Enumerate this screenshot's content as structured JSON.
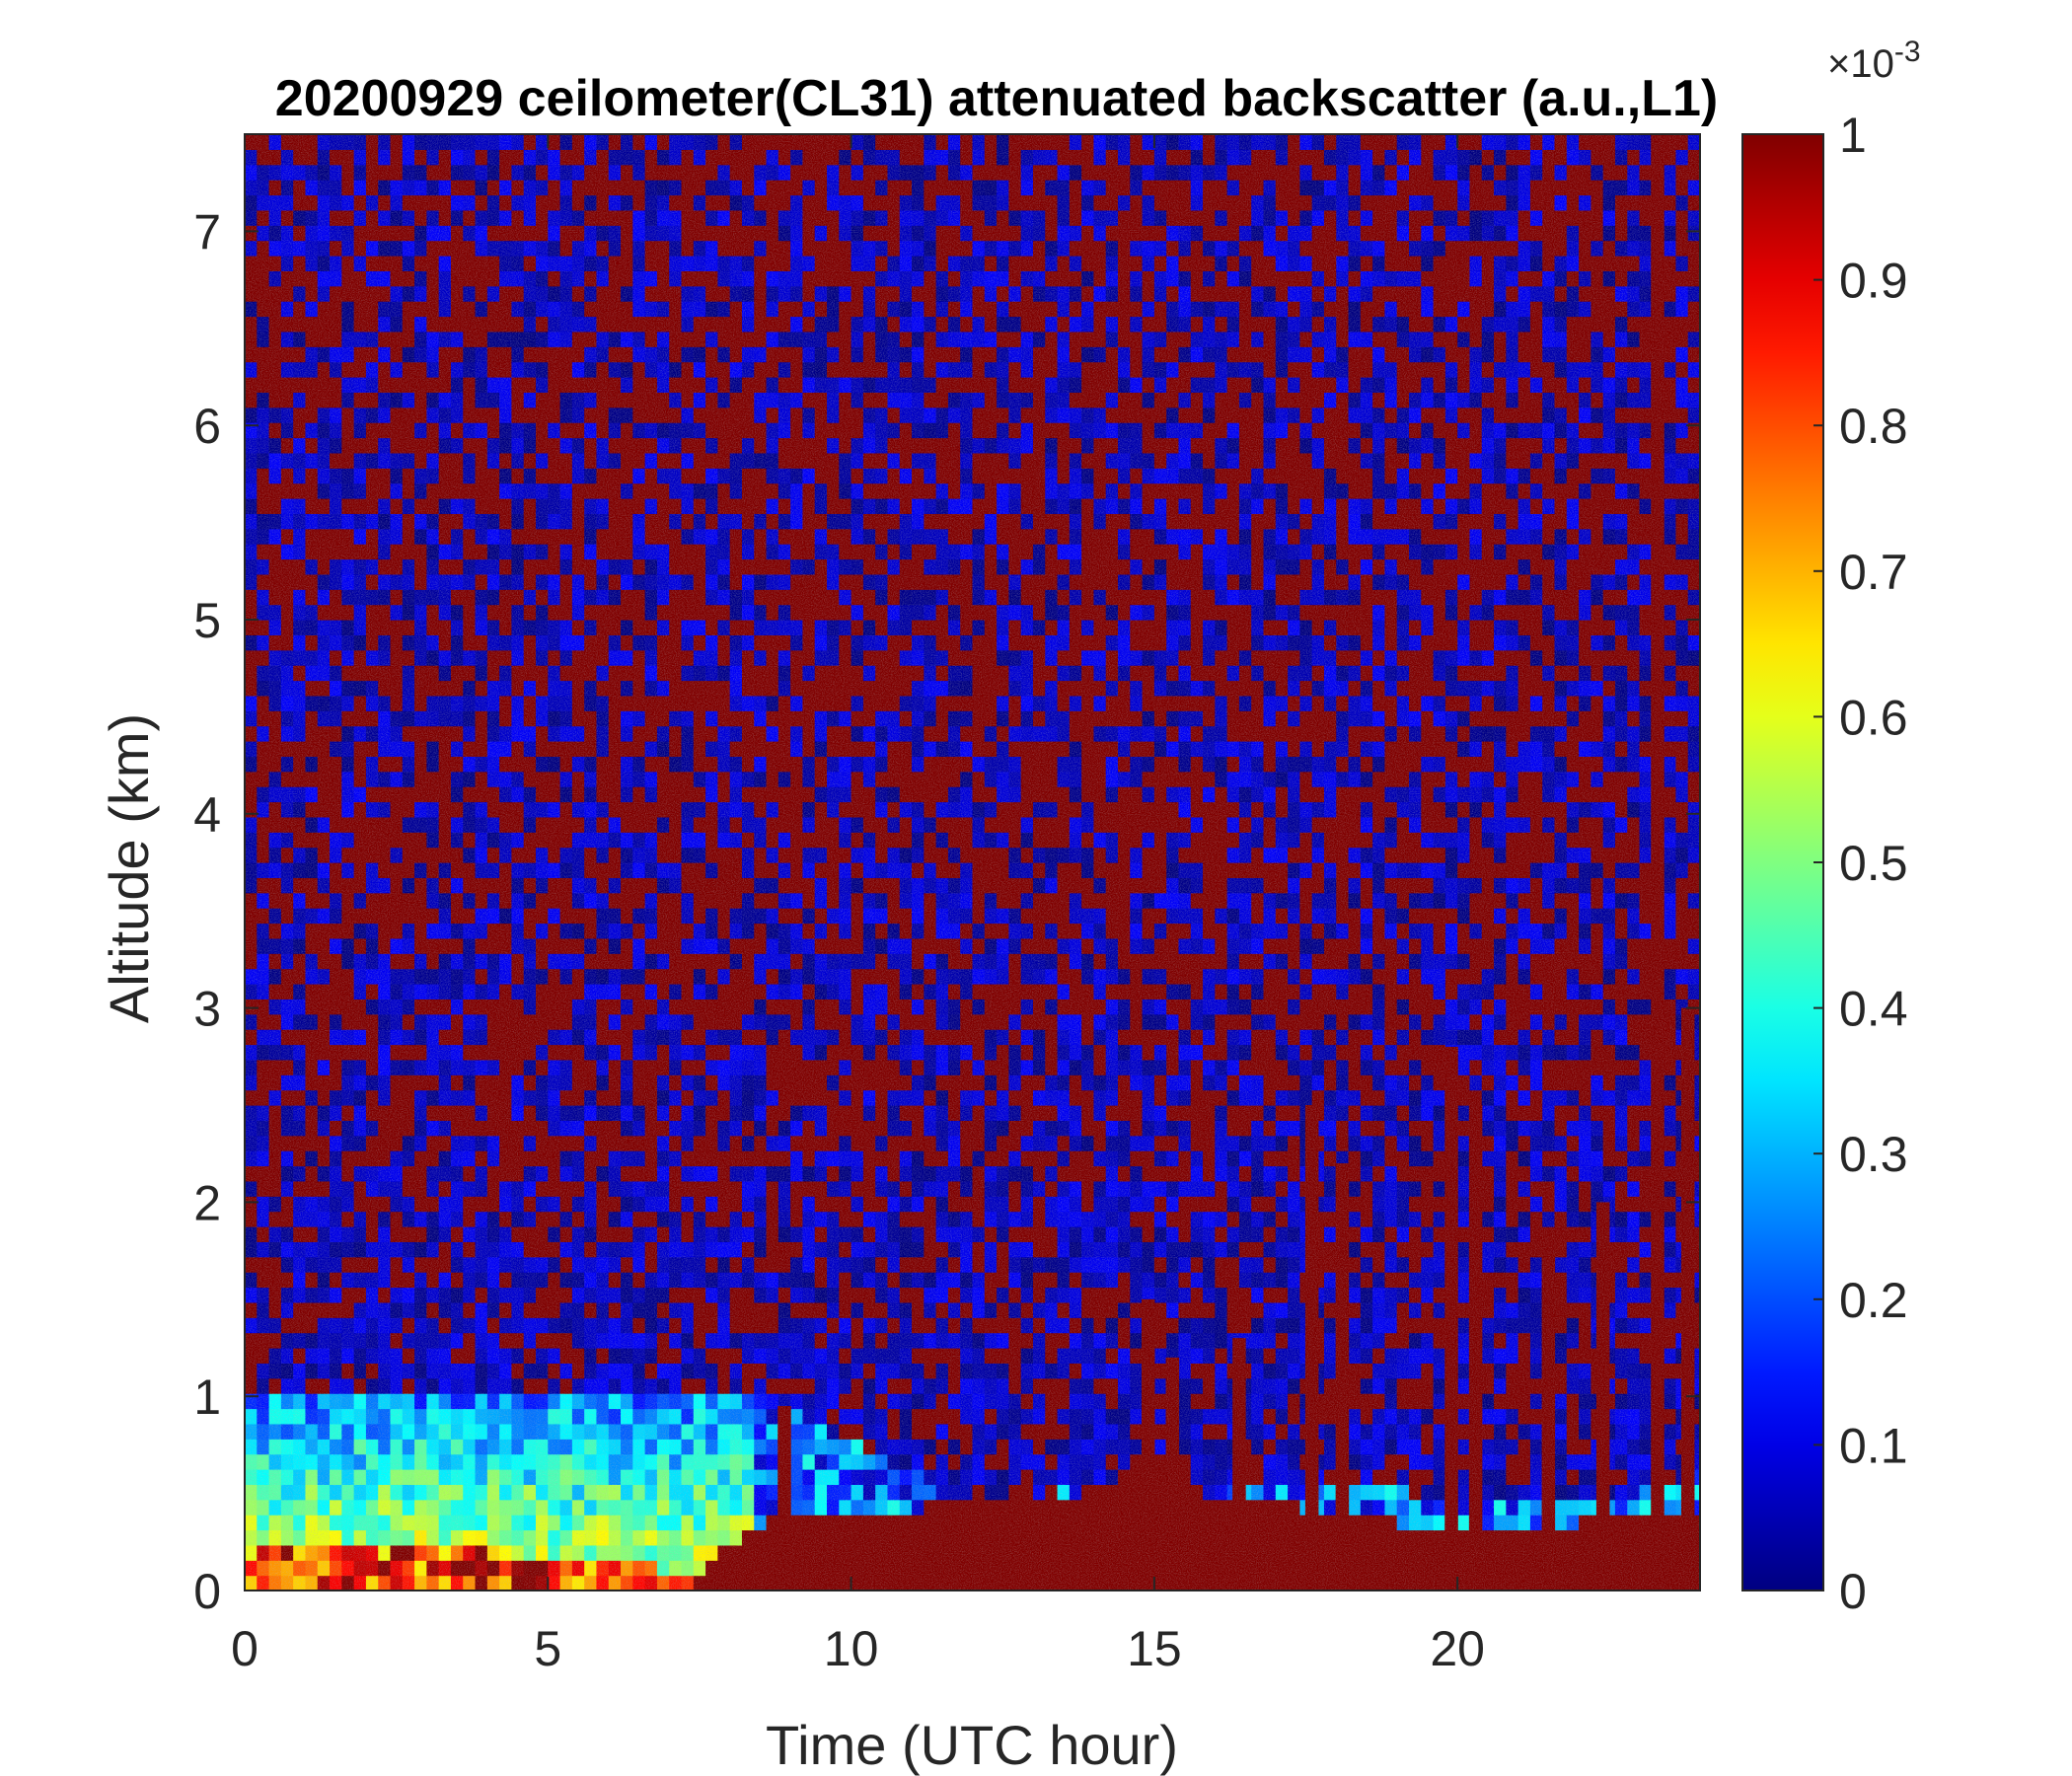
{
  "chart_data": {
    "type": "heatmap",
    "title": "20200929 ceilometer(CL31) attenuated backscatter (a.u.,L1)",
    "xlabel": "Time (UTC hour)",
    "ylabel": "Altitude (km)",
    "xlim": [
      0,
      24
    ],
    "ylim": [
      0,
      7.5
    ],
    "x_ticks": [
      0,
      5,
      10,
      15,
      20
    ],
    "y_ticks": [
      0,
      1,
      2,
      3,
      4,
      5,
      6,
      7
    ],
    "colorbar": {
      "colormap": "jet",
      "clim": [
        0,
        1
      ],
      "exponent_label": "×10",
      "exponent_power": "-3",
      "ticks": [
        0,
        0.1,
        0.2,
        0.3,
        0.4,
        0.5,
        0.6,
        0.7,
        0.8,
        0.9,
        1
      ],
      "tick_labels": [
        "0",
        "0.1",
        "0.2",
        "0.3",
        "0.4",
        "0.5",
        "0.6",
        "0.7",
        "0.8",
        "0.9",
        "1"
      ]
    },
    "features": {
      "boundary_layer_top_km": [
        [
          0,
          1.0
        ],
        [
          5,
          1.0
        ],
        [
          8.5,
          1.0
        ],
        [
          12,
          0.45
        ],
        [
          14.5,
          0.55
        ],
        [
          20,
          0.5
        ],
        [
          23,
          0.5
        ],
        [
          24,
          0.6
        ]
      ],
      "dense_aerosol_top_km": [
        [
          0,
          0.2
        ],
        [
          4,
          0.2
        ],
        [
          7.5,
          0.1
        ],
        [
          8.5,
          0.35
        ],
        [
          12,
          0.45
        ],
        [
          15,
          0.55
        ],
        [
          20,
          0.3
        ],
        [
          24,
          0.4
        ]
      ],
      "plume_columns": [
        {
          "x": 8.9,
          "top": 0.95
        },
        {
          "x": 14.9,
          "top": 1.5
        },
        {
          "x": 15.3,
          "top": 1.2
        },
        {
          "x": 16.4,
          "top": 1.3
        },
        {
          "x": 17.6,
          "top": 2.5
        },
        {
          "x": 18.1,
          "top": 2.2
        },
        {
          "x": 19.9,
          "top": 2.8
        },
        {
          "x": 20.3,
          "top": 2.5
        },
        {
          "x": 21.5,
          "top": 1.8
        },
        {
          "x": 22.4,
          "top": 2.0
        },
        {
          "x": 23.3,
          "top": 7.5
        },
        {
          "x": 23.8,
          "top": 3.0
        }
      ]
    },
    "colors": {
      "high": "#800000",
      "low": "#00008f"
    }
  }
}
